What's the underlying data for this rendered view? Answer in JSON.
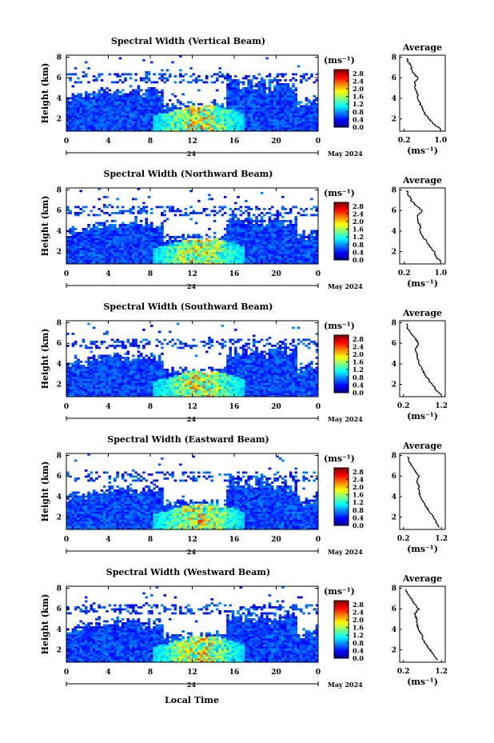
{
  "figure": {
    "xlabel": "Local Time",
    "date_label": "May 2024",
    "day_label": "24",
    "colorbar_unit": "(ms⁻¹)",
    "avg_title": "Average",
    "avg_unit": "(ms⁻¹)",
    "ylabel": "Height (km)"
  },
  "chart_data": [
    {
      "type": "heatmap",
      "title": "Spectral Width (Vertical Beam)",
      "ylabel": "Height (km)",
      "xlabel": "",
      "x_ticks": [
        "0",
        "4",
        "8",
        "12",
        "16",
        "20",
        "0"
      ],
      "xlim": [
        0,
        24
      ],
      "y_ticks": [
        "2",
        "4",
        "6",
        "8"
      ],
      "ylim": [
        0.8,
        8.2
      ],
      "colorbar": {
        "ticks": [
          "0.0",
          "0.4",
          "0.8",
          "1.2",
          "1.6",
          "2.0",
          "2.4",
          "2.8"
        ],
        "range": [
          0,
          3.0
        ]
      },
      "average_profile": {
        "title": "Average",
        "x_ticks": [
          "0.2",
          "1.0"
        ],
        "xlim": [
          0.1,
          1.1
        ],
        "y_ticks": [
          "2",
          "4",
          "6",
          "8"
        ],
        "ylim": [
          0.8,
          8.2
        ],
        "height": [
          1.0,
          1.5,
          2.0,
          2.5,
          3.0,
          3.5,
          4.0,
          4.5,
          5.0,
          5.5,
          6.0,
          6.5,
          7.0,
          7.5,
          8.0
        ],
        "width": [
          1.0,
          0.85,
          0.75,
          0.65,
          0.6,
          0.55,
          0.5,
          0.48,
          0.45,
          0.42,
          0.5,
          0.38,
          0.35,
          0.3,
          0.25
        ]
      },
      "seed": 11
    },
    {
      "type": "heatmap",
      "title": "Spectral Width (Northward Beam)",
      "ylabel": "Height (km)",
      "xlabel": "",
      "x_ticks": [
        "0",
        "4",
        "8",
        "12",
        "16",
        "20",
        "0"
      ],
      "xlim": [
        0,
        24
      ],
      "y_ticks": [
        "2",
        "4",
        "6",
        "8"
      ],
      "ylim": [
        0.8,
        8.2
      ],
      "colorbar": {
        "ticks": [
          "0.0",
          "0.4",
          "0.8",
          "1.2",
          "1.6",
          "2.0",
          "2.4",
          "2.8"
        ],
        "range": [
          0,
          3.0
        ]
      },
      "average_profile": {
        "title": "Average",
        "x_ticks": [
          "0.2",
          "1.0"
        ],
        "xlim": [
          0.1,
          1.1
        ],
        "y_ticks": [
          "2",
          "4",
          "6",
          "8"
        ],
        "ylim": [
          0.8,
          8.2
        ],
        "height": [
          1.0,
          1.5,
          2.0,
          2.5,
          3.0,
          3.5,
          4.0,
          4.5,
          5.0,
          5.5,
          6.0,
          6.5,
          7.0,
          7.5,
          8.0
        ],
        "width": [
          1.0,
          0.9,
          0.85,
          0.75,
          0.7,
          0.6,
          0.55,
          0.55,
          0.5,
          0.5,
          0.6,
          0.45,
          0.35,
          0.3,
          0.25
        ]
      },
      "seed": 23
    },
    {
      "type": "heatmap",
      "title": "Spectral Width (Southward Beam)",
      "ylabel": "Height (km)",
      "xlabel": "",
      "x_ticks": [
        "0",
        "4",
        "8",
        "12",
        "16",
        "20",
        "0"
      ],
      "xlim": [
        0,
        24
      ],
      "y_ticks": [
        "2",
        "4",
        "6",
        "8"
      ],
      "ylim": [
        0.8,
        8.2
      ],
      "colorbar": {
        "ticks": [
          "0.0",
          "0.4",
          "0.8",
          "1.2",
          "1.6",
          "2.0",
          "2.4",
          "2.8"
        ],
        "range": [
          0,
          3.0
        ]
      },
      "average_profile": {
        "title": "Average",
        "x_ticks": [
          "0.2",
          "1.2"
        ],
        "xlim": [
          0.1,
          1.3
        ],
        "y_ticks": [
          "2",
          "4",
          "6",
          "8"
        ],
        "ylim": [
          0.8,
          8.2
        ],
        "height": [
          1.0,
          1.5,
          2.0,
          2.5,
          3.0,
          3.5,
          4.0,
          4.5,
          5.0,
          5.5,
          6.0,
          6.5,
          7.0,
          7.5,
          8.0
        ],
        "width": [
          1.2,
          1.05,
          0.95,
          0.85,
          0.75,
          0.7,
          0.6,
          0.58,
          0.55,
          0.52,
          0.6,
          0.5,
          0.4,
          0.3,
          0.28
        ]
      },
      "seed": 37
    },
    {
      "type": "heatmap",
      "title": "Spectral Width (Eastward Beam)",
      "ylabel": "Height (km)",
      "xlabel": "",
      "x_ticks": [
        "0",
        "4",
        "8",
        "12",
        "16",
        "20",
        "0"
      ],
      "xlim": [
        0,
        24
      ],
      "y_ticks": [
        "2",
        "4",
        "6",
        "8"
      ],
      "ylim": [
        0.8,
        8.2
      ],
      "colorbar": {
        "ticks": [
          "0.0",
          "0.4",
          "0.8",
          "1.2",
          "1.6",
          "2.0",
          "2.4",
          "2.8"
        ],
        "range": [
          0,
          3.0
        ]
      },
      "average_profile": {
        "title": "Average",
        "x_ticks": [
          "0.2",
          "1.2"
        ],
        "xlim": [
          0.1,
          1.3
        ],
        "y_ticks": [
          "2",
          "4",
          "6",
          "8"
        ],
        "ylim": [
          0.8,
          8.2
        ],
        "height": [
          1.0,
          1.5,
          2.0,
          2.5,
          3.0,
          3.5,
          4.0,
          4.5,
          5.0,
          5.5,
          6.0,
          6.5,
          7.0,
          7.5,
          8.0
        ],
        "width": [
          1.15,
          1.05,
          1.0,
          0.9,
          0.8,
          0.72,
          0.65,
          0.6,
          0.6,
          0.55,
          0.62,
          0.5,
          0.42,
          0.35,
          0.3
        ]
      },
      "seed": 51
    },
    {
      "type": "heatmap",
      "title": "Spectral Width (Westward Beam)",
      "ylabel": "Height (km)",
      "xlabel": "Local Time",
      "x_ticks": [
        "0",
        "4",
        "8",
        "12",
        "16",
        "20",
        "0"
      ],
      "xlim": [
        0,
        24
      ],
      "y_ticks": [
        "2",
        "4",
        "6",
        "8"
      ],
      "ylim": [
        0.8,
        8.2
      ],
      "colorbar": {
        "ticks": [
          "0.0",
          "0.4",
          "0.8",
          "1.2",
          "1.6",
          "2.0",
          "2.4",
          "2.8"
        ],
        "range": [
          0,
          3.0
        ]
      },
      "average_profile": {
        "title": "Average",
        "x_ticks": [
          "0.2",
          "1.2"
        ],
        "xlim": [
          0.1,
          1.3
        ],
        "y_ticks": [
          "2",
          "4",
          "6",
          "8"
        ],
        "ylim": [
          0.8,
          8.2
        ],
        "height": [
          1.0,
          1.5,
          2.0,
          2.5,
          3.0,
          3.5,
          4.0,
          4.5,
          5.0,
          5.5,
          6.0,
          6.5,
          7.0,
          7.5,
          8.0
        ],
        "width": [
          1.1,
          1.0,
          0.9,
          0.8,
          0.72,
          0.68,
          0.6,
          0.55,
          0.55,
          0.5,
          0.6,
          0.48,
          0.4,
          0.3,
          0.25
        ]
      },
      "seed": 67
    }
  ]
}
